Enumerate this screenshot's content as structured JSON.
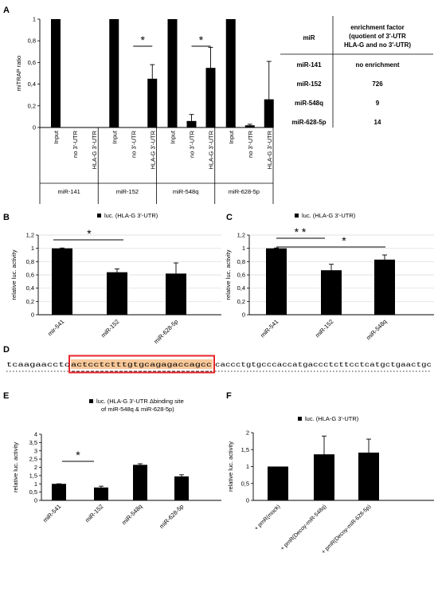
{
  "panels": {
    "A": {
      "letter": "A"
    },
    "B": {
      "letter": "B"
    },
    "C": {
      "letter": "C"
    },
    "D": {
      "letter": "D"
    },
    "E": {
      "letter": "E"
    },
    "F": {
      "letter": "F"
    }
  },
  "chart_data": [
    {
      "id": "A",
      "type": "bar",
      "ylabel": "miTRAP ratio",
      "ylim": [
        0,
        1
      ],
      "yticks": [
        "0",
        "0,2",
        "0,4",
        "0,6",
        "0,8",
        "1"
      ],
      "groups": [
        "miR-141",
        "miR-152",
        "miR-548q",
        "miR-628-5p"
      ],
      "categories": [
        "Input",
        "no 3'-UTR",
        "HLA-G 3'-UTR"
      ],
      "values": [
        [
          1.0,
          0.0,
          0.0
        ],
        [
          1.0,
          0.0,
          0.45
        ],
        [
          1.0,
          0.06,
          0.55
        ],
        [
          1.0,
          0.02,
          0.26
        ]
      ],
      "errors": [
        [
          0,
          0,
          0
        ],
        [
          0,
          0,
          0.13
        ],
        [
          0,
          0.06,
          0.19
        ],
        [
          0,
          0.01,
          0.35
        ]
      ],
      "significance": [
        "*",
        "*"
      ]
    },
    {
      "id": "B",
      "type": "bar",
      "legend": "luc. (HLA-G 3'-UTR)",
      "ylabel": "relative luc. activity",
      "ylim": [
        0,
        1.2
      ],
      "yticks": [
        "0",
        "0,2",
        "0,4",
        "0,6",
        "0,8",
        "1",
        "1,2"
      ],
      "categories": [
        "mir-541",
        "miR-152",
        "miR-628-5p"
      ],
      "values": [
        1.0,
        0.64,
        0.62
      ],
      "errors": [
        0.005,
        0.05,
        0.16
      ],
      "significance": [
        "*"
      ]
    },
    {
      "id": "C",
      "type": "bar",
      "legend": "luc. (HLA-G 3'-UTR)",
      "ylabel": "relative luc. activity",
      "ylim": [
        0,
        1.2
      ],
      "yticks": [
        "0",
        "0,2",
        "0,4",
        "0,6",
        "0,8",
        "1",
        "1,2"
      ],
      "categories": [
        "miR-541",
        "miR-152",
        "miR-548q"
      ],
      "values": [
        1.0,
        0.67,
        0.83
      ],
      "errors": [
        0.005,
        0.09,
        0.07
      ],
      "significance": [
        "* *",
        "*"
      ]
    },
    {
      "id": "E",
      "type": "bar",
      "legend": [
        "luc. (HLA-G 3'-UTR Δbinding site",
        "of miR-548q & miR-628-5p)"
      ],
      "ylabel": "relative luc. activity",
      "ylim": [
        0,
        4
      ],
      "yticks": [
        "0",
        "0,5",
        "1",
        "1,5",
        "2",
        "2,5",
        "3",
        "3,5",
        "4"
      ],
      "categories": [
        "miR-541",
        "miR-152",
        "miR-548q",
        "miR-628-5p"
      ],
      "values": [
        1.0,
        0.78,
        2.15,
        1.45
      ],
      "errors": [
        0.005,
        0.08,
        0.07,
        0.1
      ],
      "significance": [
        "*"
      ]
    },
    {
      "id": "F",
      "type": "bar",
      "legend": "luc. (HLA-G 3'-UTR)",
      "ylabel": "relative luc. activity",
      "ylim": [
        0,
        2
      ],
      "yticks": [
        "0",
        "0,5",
        "1",
        "1,5",
        "2"
      ],
      "categories": [
        "+ pmR(mock)",
        "+ pmR(Decoy-miR-548q)",
        "+ pmR(Decoy-miR-628-5p)"
      ],
      "values": [
        1.0,
        1.36,
        1.41
      ],
      "errors": [
        0.0,
        0.54,
        0.4
      ],
      "significance": []
    }
  ],
  "enrichment_table": {
    "header_col1": "miR",
    "header_col2": [
      "enrichment factor",
      "(quotient  of 3'-UTR",
      "HLA-G and no 3'-UTR)"
    ],
    "rows": [
      {
        "mir": "miR-141",
        "factor": "no enrichment"
      },
      {
        "mir": "miR-152",
        "factor": "726"
      },
      {
        "mir": "miR-548q",
        "factor": "9"
      },
      {
        "mir": "miR-628-5p",
        "factor": "14"
      }
    ]
  },
  "sequence": {
    "before": "tcaagaacctc",
    "highlight": "actcctctttgtgcagagaccagcc",
    "after": "caccctgtgcccaccatgaccctcttcctcatgctgaactgc",
    "highlight_fill": "#f9c99a",
    "box_color": "#e8262a"
  },
  "colors": {
    "bar": "#000000",
    "axis": "#000000",
    "grid": "#d9d9d9"
  }
}
